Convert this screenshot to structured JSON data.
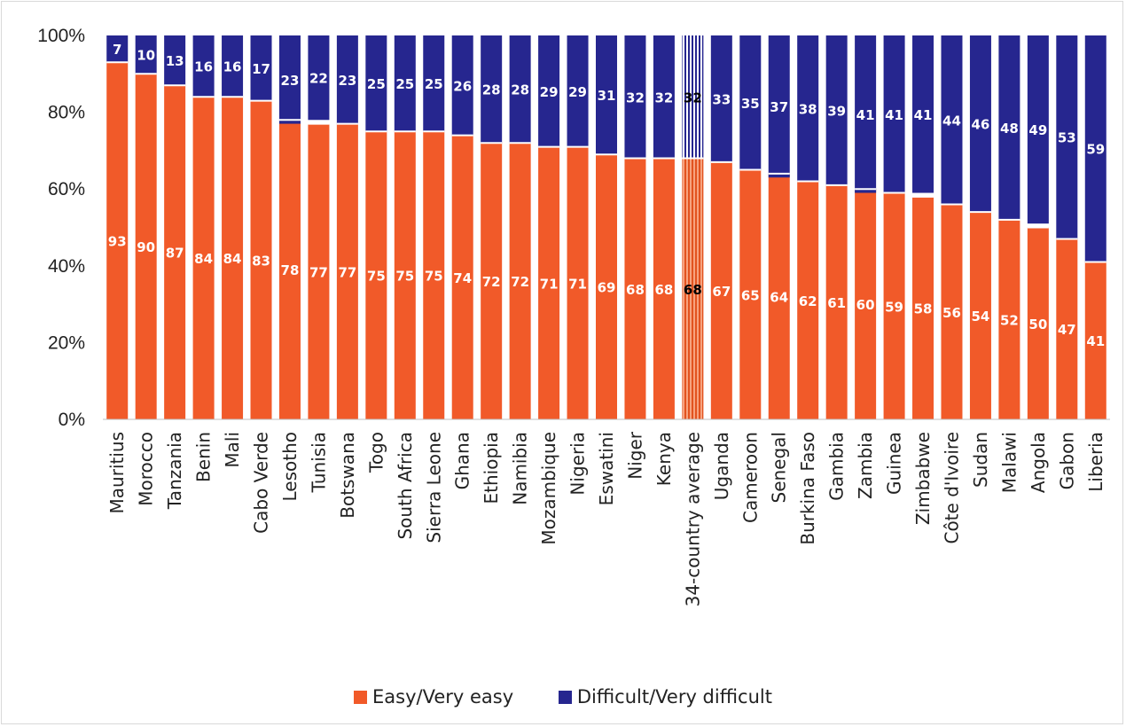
{
  "chart_data": {
    "type": "bar",
    "stacked": true,
    "percent": true,
    "ylim": [
      0,
      100
    ],
    "yticks": [
      "0%",
      "20%",
      "40%",
      "60%",
      "80%",
      "100%"
    ],
    "categories": [
      "Mauritius",
      "Morocco",
      "Tanzania",
      "Benin",
      "Mali",
      "Cabo Verde",
      "Lesotho",
      "Tunisia",
      "Botswana",
      "Togo",
      "South Africa",
      "Sierra Leone",
      "Ghana",
      "Ethiopia",
      "Namibia",
      "Mozambique",
      "Nigeria",
      "Eswatini",
      "Niger",
      "Kenya",
      "34-country average",
      "Uganda",
      "Cameroon",
      "Senegal",
      "Burkina Faso",
      "Gambia",
      "Zambia",
      "Guinea",
      "Zimbabwe",
      "Côte d'Ivoire",
      "Sudan",
      "Malawi",
      "Angola",
      "Gabon",
      "Liberia"
    ],
    "highlight_category": "34-country average",
    "series": [
      {
        "name": "Easy/Very easy",
        "color": "#f15a29",
        "values": [
          93,
          90,
          87,
          84,
          84,
          83,
          78,
          77,
          77,
          75,
          75,
          75,
          74,
          72,
          72,
          71,
          71,
          69,
          68,
          68,
          68,
          67,
          65,
          64,
          62,
          61,
          60,
          59,
          58,
          56,
          54,
          52,
          50,
          47,
          41
        ]
      },
      {
        "name": "Difficult/Very difficult",
        "color": "#26268f",
        "values": [
          7,
          10,
          13,
          16,
          16,
          17,
          23,
          22,
          23,
          25,
          25,
          25,
          26,
          28,
          28,
          29,
          29,
          31,
          32,
          32,
          32,
          33,
          35,
          37,
          38,
          39,
          41,
          41,
          41,
          44,
          46,
          48,
          49,
          53,
          59
        ]
      }
    ],
    "legend_position": "bottom",
    "grid": false
  }
}
